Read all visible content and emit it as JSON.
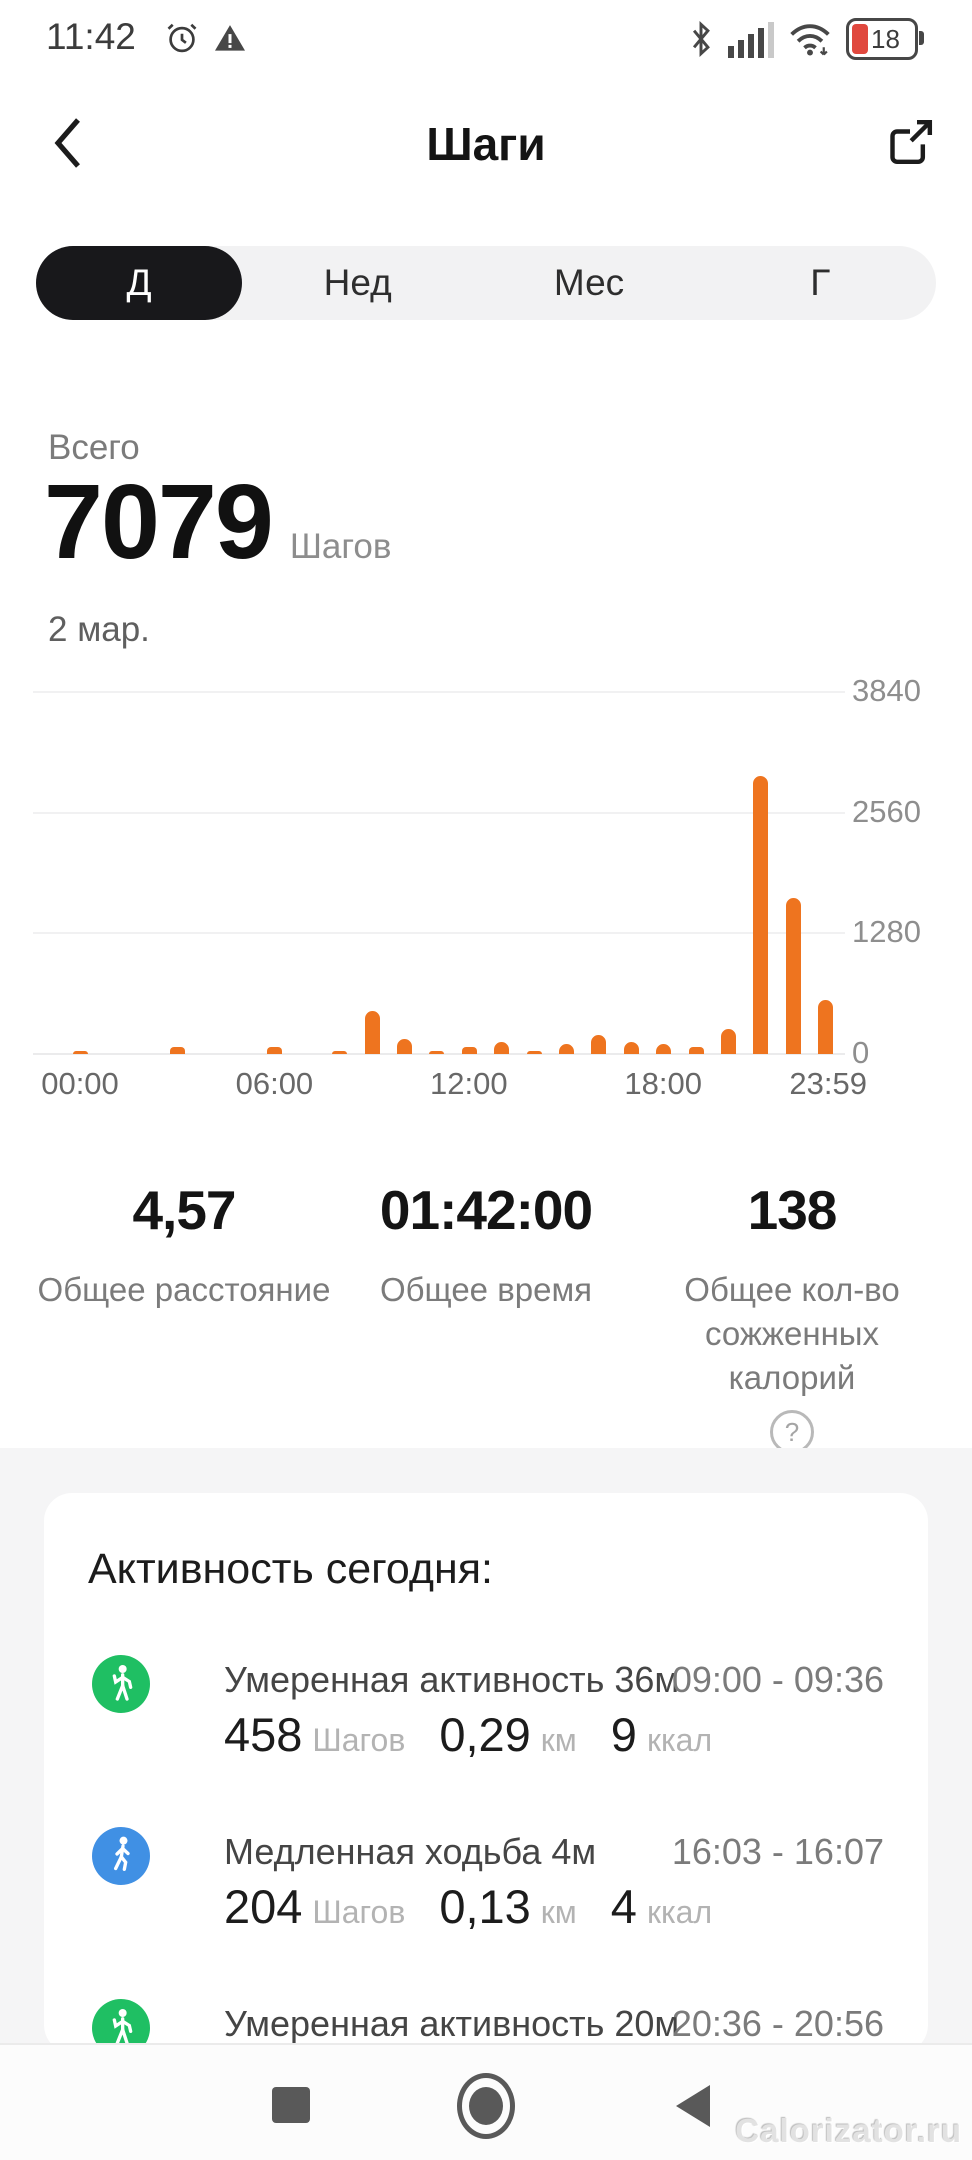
{
  "status_bar": {
    "time": "11:42",
    "battery_level": "18"
  },
  "header": {
    "title": "Шаги"
  },
  "tabs": {
    "day": "Д",
    "week": "Нед",
    "month": "Мес",
    "year": "Г",
    "selected": "Д"
  },
  "summary": {
    "label": "Всего",
    "value": "7079",
    "unit": "Шагов",
    "date": "2 мар."
  },
  "chart_data": {
    "type": "bar",
    "x_hours": [
      0,
      1,
      2,
      3,
      4,
      5,
      6,
      7,
      8,
      9,
      10,
      11,
      12,
      13,
      14,
      15,
      16,
      17,
      18,
      19,
      20,
      21,
      22,
      23
    ],
    "values": [
      25,
      0,
      0,
      70,
      0,
      0,
      75,
      0,
      30,
      460,
      160,
      30,
      75,
      130,
      20,
      110,
      205,
      125,
      110,
      70,
      265,
      2950,
      1650,
      575
    ],
    "ylim": [
      0,
      3840
    ],
    "yticks": [
      0,
      1280,
      2560,
      3840
    ],
    "xticks": [
      "00:00",
      "06:00",
      "12:00",
      "18:00",
      "23:59"
    ],
    "xtick_hours": [
      0,
      6,
      12,
      18,
      23
    ],
    "bar_color": "#EE741F",
    "grid": true,
    "legend": false,
    "title": ""
  },
  "totals": [
    {
      "value": "4,57",
      "label": "Общее расстояние"
    },
    {
      "value": "01:42:00",
      "label": "Общее время"
    },
    {
      "value": "138",
      "label": "Общее кол-во сожженных калорий",
      "help": "?"
    }
  ],
  "activity": {
    "title": "Активность сегодня:",
    "items": [
      {
        "icon": "moderate-activity",
        "title": "Умеренная активность 36м",
        "time": "09:00 - 09:36",
        "steps": "458",
        "steps_unit": "Шагов",
        "distance": "0,29",
        "distance_unit": "км",
        "calories": "9",
        "calories_unit": "ккал"
      },
      {
        "icon": "slow-walk",
        "title": "Медленная ходьба 4м",
        "time": "16:03 - 16:07",
        "steps": "204",
        "steps_unit": "Шагов",
        "distance": "0,13",
        "distance_unit": "км",
        "calories": "4",
        "calories_unit": "ккал"
      },
      {
        "icon": "moderate-activity",
        "title": "Умеренная активность 20м",
        "time": "20:36 - 20:56"
      }
    ]
  },
  "watermark": "Calorizator.ru",
  "colors": {
    "accent_orange": "#EE741F",
    "activity_green": "#1FBF63",
    "activity_blue": "#4090E4",
    "battery_red": "#E0483E",
    "tab_selected_bg": "#18181B",
    "section_gray": "#F5F5F6"
  }
}
